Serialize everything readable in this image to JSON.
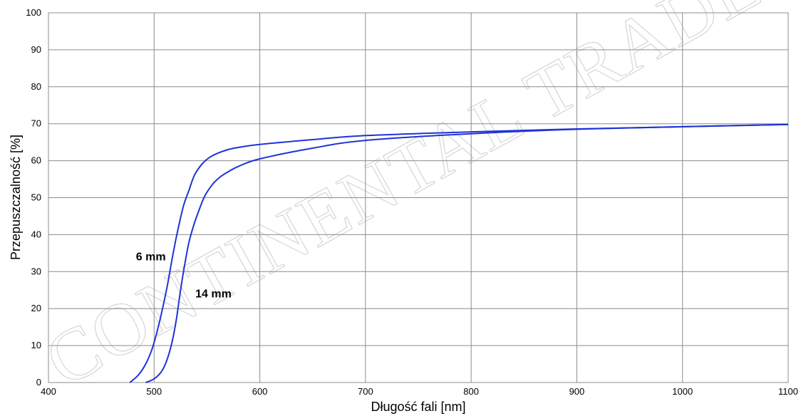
{
  "chart_data": {
    "type": "line",
    "xlabel": "Długość fali [nm]",
    "ylabel": "Przepuszczalność [%]",
    "xlim": [
      400,
      1100
    ],
    "ylim": [
      0,
      100
    ],
    "xticks": [
      400,
      500,
      600,
      700,
      800,
      900,
      1000,
      1100
    ],
    "yticks": [
      0,
      10,
      20,
      30,
      40,
      50,
      60,
      70,
      80,
      90,
      100
    ],
    "grid": true,
    "line_color": "#1f33d8",
    "watermark": "CONTINENTAL TRADE",
    "series": [
      {
        "name": "6 mm",
        "x": [
          477,
          485,
          492,
          498,
          503,
          508,
          513,
          518,
          523,
          528,
          533,
          538,
          545,
          552,
          560,
          570,
          580,
          600,
          650,
          700,
          800,
          900,
          1000,
          1100
        ],
        "y": [
          0,
          2,
          5,
          9,
          14,
          20,
          27,
          35,
          42,
          48,
          52,
          56,
          59,
          60.8,
          62,
          63,
          63.6,
          64.4,
          65.7,
          66.8,
          67.8,
          68.6,
          69.2,
          69.8
        ]
      },
      {
        "name": "14 mm",
        "x": [
          492,
          500,
          507,
          512,
          517,
          521,
          525,
          529,
          533,
          538,
          543,
          548,
          555,
          562,
          570,
          580,
          600,
          650,
          700,
          800,
          900,
          1000,
          1100
        ],
        "y": [
          0,
          1,
          3,
          6,
          11,
          17,
          25,
          32,
          38,
          43,
          47,
          50.5,
          53.5,
          55.5,
          57,
          58.5,
          60.5,
          63.4,
          65.5,
          67.3,
          68.5,
          69.2,
          69.8
        ]
      }
    ],
    "annotations": [
      {
        "text": "6 mm",
        "x": 511,
        "y": 33
      },
      {
        "text": "14 mm",
        "x": 539,
        "y": 23
      }
    ]
  }
}
